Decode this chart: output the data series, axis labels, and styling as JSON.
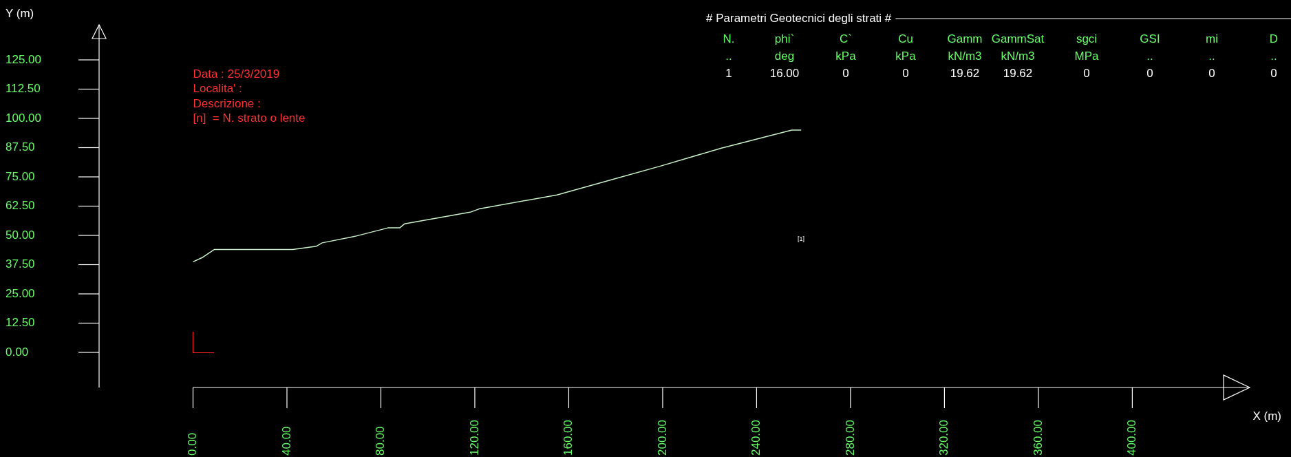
{
  "chart_data": {
    "type": "line",
    "xlabel": "X (m)",
    "ylabel": "Y (m)",
    "x": [
      0,
      3.9,
      9.1,
      42.5,
      52.6,
      55,
      69,
      83,
      88,
      90,
      118,
      121.8,
      155,
      199,
      225,
      255,
      259
    ],
    "series": [
      {
        "color": "#c8f0c8",
        "values": [
          38.7,
          40.5,
          44,
          44,
          45.4,
          46.8,
          49.6,
          53.2,
          53.2,
          54.9,
          59.9,
          61.3,
          67.3,
          79.6,
          87.3,
          95,
          95
        ]
      }
    ],
    "xlim": [
      -40,
      450
    ],
    "ylim": [
      -15,
      140
    ],
    "xticks": [
      {
        "value": 0,
        "label": "0.00"
      },
      {
        "value": 40,
        "label": "40.00"
      },
      {
        "value": 80,
        "label": "80.00"
      },
      {
        "value": 120,
        "label": "120.00"
      },
      {
        "value": 160,
        "label": "160.00"
      },
      {
        "value": 200,
        "label": "200.00"
      },
      {
        "value": 240,
        "label": "240.00"
      },
      {
        "value": 280,
        "label": "280.00"
      },
      {
        "value": 320,
        "label": "320.00"
      },
      {
        "value": 360,
        "label": "360.00"
      },
      {
        "value": 400,
        "label": "400.00"
      }
    ],
    "yticks": [
      {
        "value": 0,
        "label": "0.00"
      },
      {
        "value": 12.5,
        "label": "12.50"
      },
      {
        "value": 25,
        "label": "25.00"
      },
      {
        "value": 37.5,
        "label": "37.50"
      },
      {
        "value": 50,
        "label": "50.00"
      },
      {
        "value": 62.5,
        "label": "62.50"
      },
      {
        "value": 75,
        "label": "75.00"
      },
      {
        "value": 87.5,
        "label": "87.50"
      },
      {
        "value": 100,
        "label": "100.00"
      },
      {
        "value": 112.5,
        "label": "112.50"
      },
      {
        "value": 125,
        "label": "125.00"
      }
    ],
    "grid": false,
    "legend": false,
    "marker": "none",
    "line_style": "solid",
    "annotations": [
      "Data : 25/3/2019",
      "Localita' :",
      "Descrizione :",
      "[n]  = N. strato o lente",
      "# Parametri Geotecnici degli strati #",
      "N.",
      "phi`",
      "C`",
      "Cu",
      "Gamm",
      "GammSat",
      "sgci",
      "GSI",
      "mi",
      "D",
      "..",
      "deg",
      "kPa",
      "kPa",
      "kN/m3",
      "kN/m3",
      "MPa",
      "..",
      "..",
      "..",
      "1",
      "16.00",
      "0",
      "0",
      "19.62",
      "19.62",
      "0",
      "0",
      "0",
      "0",
      "[1]"
    ]
  }
}
